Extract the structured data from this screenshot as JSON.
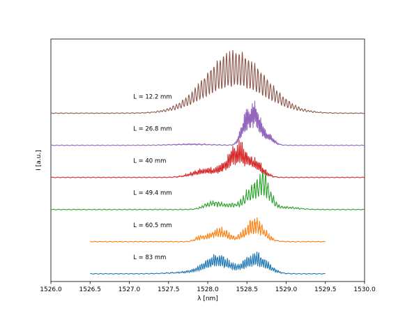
{
  "chart_data": {
    "type": "line",
    "title": "",
    "xlabel": "λ [nm]",
    "ylabel": "I [a.u.]",
    "xlim": [
      1526.0,
      1530.0
    ],
    "xticks": [
      1526.0,
      1526.5,
      1527.0,
      1527.5,
      1528.0,
      1528.5,
      1529.0,
      1529.5,
      1530.0
    ],
    "xtick_labels": [
      "1526.0",
      "1526.5",
      "1527.0",
      "1527.5",
      "1528.0",
      "1528.5",
      "1529.0",
      "1529.5",
      "1530.0"
    ],
    "y_ticks_shown": false,
    "grid": false,
    "legend": "none",
    "series": [
      {
        "label": "L = 83 mm",
        "color": "#1f77b4",
        "offset": 0.0,
        "x_range": [
          1526.5,
          1529.5
        ],
        "envelope": [
          {
            "center": 1528.12,
            "width": 0.16,
            "amplitude": 0.8
          },
          {
            "center": 1528.62,
            "width": 0.14,
            "amplitude": 0.88
          },
          {
            "center": 1527.75,
            "width": 0.22,
            "amplitude": 0.08
          }
        ],
        "fringe_period": 0.025,
        "noise": 0.18
      },
      {
        "label": "L = 60.5 mm",
        "color": "#ff7f0e",
        "offset": 1.45,
        "x_range": [
          1526.5,
          1529.5
        ],
        "envelope": [
          {
            "center": 1528.15,
            "width": 0.12,
            "amplitude": 0.55
          },
          {
            "center": 1528.6,
            "width": 0.12,
            "amplitude": 0.95
          },
          {
            "center": 1527.9,
            "width": 0.06,
            "amplitude": 0.2
          }
        ],
        "fringe_period": 0.03,
        "noise": 0.25
      },
      {
        "label": "L = 49.4 mm",
        "color": "#2ca02c",
        "offset": 2.9,
        "x_range": [
          1526.0,
          1530.0
        ],
        "envelope": [
          {
            "center": 1528.72,
            "width": 0.08,
            "amplitude": 1.4
          },
          {
            "center": 1528.55,
            "width": 0.08,
            "amplitude": 0.9
          },
          {
            "center": 1528.05,
            "width": 0.1,
            "amplitude": 0.35
          },
          {
            "center": 1528.3,
            "width": 0.12,
            "amplitude": 0.25
          },
          {
            "center": 1529.0,
            "width": 0.15,
            "amplitude": 0.12
          }
        ],
        "fringe_period": 0.035,
        "noise": 0.22
      },
      {
        "label": "L = 40 mm",
        "color": "#d62728",
        "offset": 4.35,
        "x_range": [
          1526.0,
          1530.0
        ],
        "envelope": [
          {
            "center": 1528.38,
            "width": 0.12,
            "amplitude": 1.4
          },
          {
            "center": 1528.62,
            "width": 0.1,
            "amplitude": 0.6
          },
          {
            "center": 1528.0,
            "width": 0.18,
            "amplitude": 0.4
          }
        ],
        "fringe_period": 0.02,
        "noise": 0.2
      },
      {
        "label": "L = 26.8 mm",
        "color": "#9467bd",
        "offset": 5.8,
        "x_range": [
          1526.0,
          1530.0
        ],
        "envelope": [
          {
            "center": 1528.6,
            "width": 0.06,
            "amplitude": 1.75
          },
          {
            "center": 1528.48,
            "width": 0.06,
            "amplitude": 1.2
          },
          {
            "center": 1528.75,
            "width": 0.08,
            "amplitude": 0.55
          },
          {
            "center": 1527.8,
            "width": 0.25,
            "amplitude": 0.06
          }
        ],
        "fringe_period": 0.015,
        "noise": 0.15
      },
      {
        "label": "L = 12.2 mm",
        "color": "#8c564b",
        "offset": 7.25,
        "x_range": [
          1526.0,
          1530.0
        ],
        "envelope": [
          {
            "center": 1528.35,
            "width": 0.38,
            "amplitude": 2.75
          }
        ],
        "fringe_period": 0.04,
        "noise": 0.05
      }
    ]
  }
}
